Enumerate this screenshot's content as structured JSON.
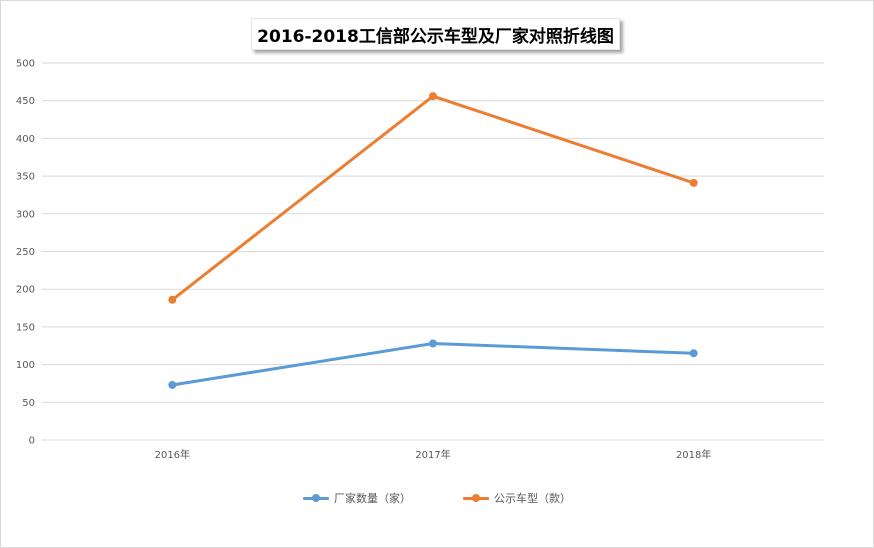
{
  "chart_data": {
    "type": "line",
    "title": "2016-2018工信部公示车型及厂家对照折线图",
    "categories": [
      "2016年",
      "2017年",
      "2018年"
    ],
    "series": [
      {
        "name": "厂家数量（家）",
        "values": [
          73,
          128,
          115
        ],
        "color": "#5b9bd5"
      },
      {
        "name": "公示车型（款）",
        "values": [
          186,
          456,
          341
        ],
        "color": "#ed7d31"
      }
    ],
    "y_ticks": [
      "0",
      "50",
      "100",
      "150",
      "200",
      "250",
      "300",
      "350",
      "400",
      "450",
      "500"
    ],
    "ylim": [
      0,
      500
    ],
    "grid": true,
    "legend_position": "bottom"
  }
}
